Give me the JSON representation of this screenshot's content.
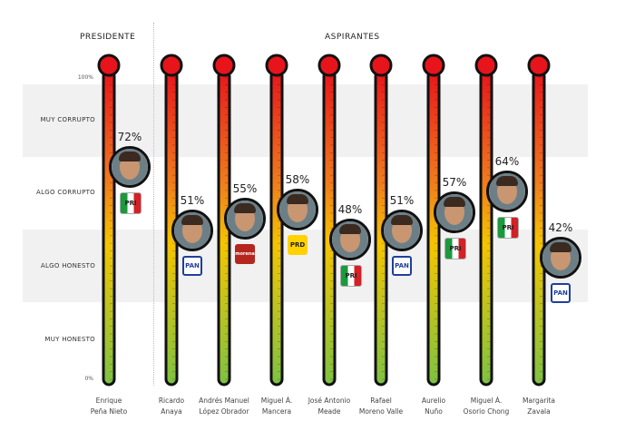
{
  "headers": {
    "president": "PRESIDENTE",
    "candidates": "ASPIRANTES"
  },
  "chart_data": {
    "type": "bar",
    "ylim": [
      0,
      100
    ],
    "y_ticks": [
      "100%",
      "0%"
    ],
    "categories_y": [
      "MUY CORRUPTO",
      "ALGO CORRUPTO",
      "ALGO HONESTO",
      "MUY HONESTO"
    ],
    "colors": {
      "top": "#e8141b",
      "mid": "#f5c400",
      "bottom": "#7dc242",
      "outline": "#111111",
      "band": "#f1f1f1"
    },
    "candidates": [
      {
        "name": [
          "Enrique",
          "Peña Nieto"
        ],
        "value": 72,
        "label": "72%",
        "party": "PRI"
      },
      {
        "name": [
          "Ricardo",
          "Anaya"
        ],
        "value": 51,
        "label": "51%",
        "party": "PAN"
      },
      {
        "name": [
          "Andrés Manuel",
          "López Obrador"
        ],
        "value": 55,
        "label": "55%",
        "party": "MORENA"
      },
      {
        "name": [
          "Miguel Á.",
          "Mancera"
        ],
        "value": 58,
        "label": "58%",
        "party": "PRD"
      },
      {
        "name": [
          "José Antonio",
          "Meade"
        ],
        "value": 48,
        "label": "48%",
        "party": "PRI"
      },
      {
        "name": [
          "Rafael",
          "Moreno Valle"
        ],
        "value": 51,
        "label": "51%",
        "party": "PAN"
      },
      {
        "name": [
          "Aurelio",
          "Nuño"
        ],
        "value": 57,
        "label": "57%",
        "party": "PRI"
      },
      {
        "name": [
          "Miguel Á.",
          "Osorio Chong"
        ],
        "value": 64,
        "label": "64%",
        "party": "PRI"
      },
      {
        "name": [
          "Margarita",
          "Zavala"
        ],
        "value": 42,
        "label": "42%",
        "party": "PAN"
      }
    ],
    "party_labels": {
      "PRI": "PRI",
      "PAN": "PAN",
      "MORENA": "morena",
      "PRD": "PRD"
    }
  }
}
